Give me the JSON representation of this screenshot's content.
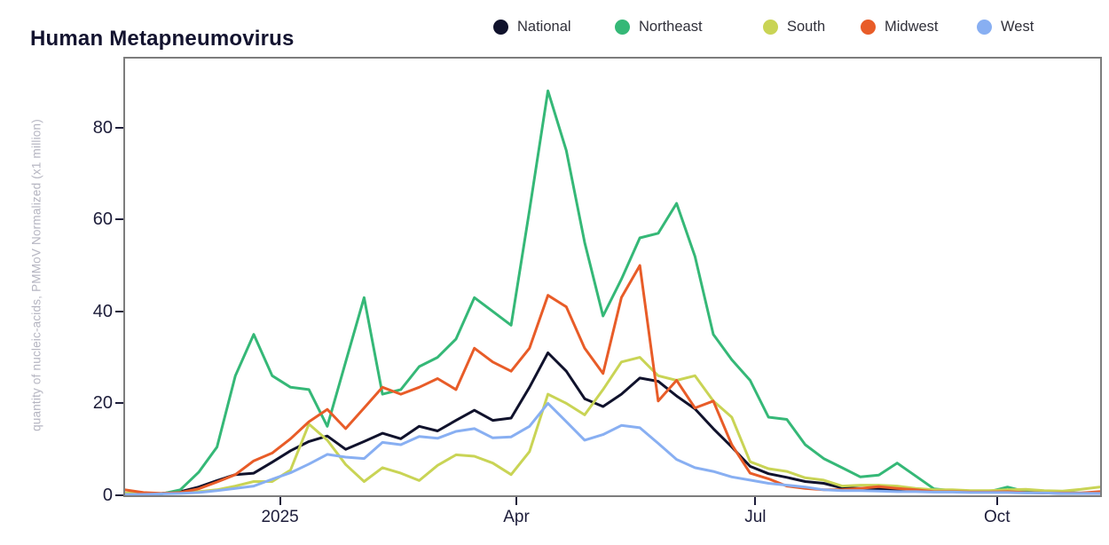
{
  "page": {
    "title": "Human Metapneumovirus"
  },
  "colors": {
    "title": "#13132f",
    "tick_label": "#1d1d3a",
    "tick_mark": "#1d1d3a",
    "axis_border": "#7d7d7d",
    "y_axis_title": "#b5b5c1",
    "legend_text": "#30303a",
    "background": "#ffffff"
  },
  "y_axis": {
    "title": "quantity of nucleic-acids, PMMoV Normalized (x1 million)",
    "ticks": [
      0,
      20,
      40,
      60,
      80
    ]
  },
  "x_axis": {
    "ticks": [
      {
        "label": "2025",
        "date": "2025-01-01"
      },
      {
        "label": "Apr",
        "date": "2025-04-01"
      },
      {
        "label": "Jul",
        "date": "2025-07-01"
      },
      {
        "label": "Oct",
        "date": "2025-10-01"
      }
    ]
  },
  "chart_data": {
    "type": "line",
    "title": "Human Metapneumovirus",
    "xlabel": "",
    "ylabel": "quantity of nucleic-acids, PMMoV Normalized (x1 million)",
    "ylim": [
      0,
      95
    ],
    "grid": false,
    "legend_position": "top",
    "x": [
      "2024-11-03",
      "2024-11-10",
      "2024-11-17",
      "2024-11-24",
      "2024-12-01",
      "2024-12-08",
      "2024-12-15",
      "2024-12-22",
      "2024-12-29",
      "2025-01-05",
      "2025-01-12",
      "2025-01-19",
      "2025-01-26",
      "2025-02-02",
      "2025-02-09",
      "2025-02-16",
      "2025-02-23",
      "2025-03-02",
      "2025-03-09",
      "2025-03-16",
      "2025-03-23",
      "2025-03-30",
      "2025-04-06",
      "2025-04-13",
      "2025-04-20",
      "2025-04-27",
      "2025-05-04",
      "2025-05-11",
      "2025-05-18",
      "2025-05-25",
      "2025-06-01",
      "2025-06-08",
      "2025-06-15",
      "2025-06-22",
      "2025-06-29",
      "2025-07-06",
      "2025-07-13",
      "2025-07-20",
      "2025-07-27",
      "2025-08-03",
      "2025-08-10",
      "2025-08-17",
      "2025-08-24",
      "2025-08-31",
      "2025-09-07",
      "2025-09-14",
      "2025-09-21",
      "2025-09-28",
      "2025-10-05",
      "2025-10-12",
      "2025-10-19",
      "2025-10-26",
      "2025-11-02",
      "2025-11-09",
      "2025-11-16"
    ],
    "series": [
      {
        "name": "National",
        "color": "#10122c",
        "values": [
          0.3,
          0.3,
          0.4,
          0.8,
          1.8,
          3.2,
          4.5,
          4.8,
          7.2,
          9.7,
          11.7,
          12.9,
          10.0,
          11.7,
          13.5,
          12.3,
          15.0,
          14.0,
          16.3,
          18.5,
          16.3,
          16.8,
          23.5,
          31.0,
          27.0,
          21.0,
          19.3,
          22.0,
          25.5,
          24.8,
          21.6,
          18.8,
          14.5,
          10.5,
          6.3,
          4.7,
          3.9,
          3.0,
          2.6,
          1.6,
          1.5,
          1.4,
          1.2,
          1.0,
          0.9,
          0.9,
          0.8,
          0.7,
          0.7,
          0.6,
          0.5,
          0.4,
          0.4,
          0.4,
          0.4
        ]
      },
      {
        "name": "Northeast",
        "color": "#35b877",
        "values": [
          0.1,
          0.1,
          0.3,
          1.2,
          5.0,
          10.5,
          26.0,
          35.0,
          26.0,
          23.5,
          23.0,
          15.0,
          29.0,
          43.0,
          22.0,
          23.0,
          28.0,
          30.0,
          34.0,
          43.0,
          40.0,
          37.0,
          62.0,
          88.0,
          75.0,
          55.0,
          39.0,
          47.0,
          56.0,
          57.0,
          63.5,
          52.0,
          35.0,
          29.5,
          25.0,
          17.0,
          16.5,
          11.0,
          8.0,
          6.0,
          4.0,
          4.4,
          7.0,
          4.2,
          1.4,
          1.0,
          0.9,
          0.8,
          1.8,
          0.8,
          0.7,
          0.6,
          0.5,
          0.6,
          0.5
        ]
      },
      {
        "name": "South",
        "color": "#c9d455",
        "values": [
          0.5,
          0.4,
          0.4,
          0.5,
          0.8,
          1.2,
          2.0,
          3.0,
          3.0,
          5.5,
          15.5,
          12.0,
          6.7,
          3.0,
          6.0,
          4.8,
          3.2,
          6.5,
          8.8,
          8.5,
          7.0,
          4.5,
          9.5,
          22.0,
          20.0,
          17.5,
          23.0,
          29.0,
          30.0,
          26.0,
          25.0,
          26.0,
          20.5,
          17.0,
          7.3,
          5.8,
          5.2,
          3.8,
          3.3,
          2.0,
          2.2,
          2.2,
          2.0,
          1.5,
          1.2,
          1.2,
          1.0,
          1.0,
          1.2,
          1.3,
          1.0,
          0.9,
          1.3,
          1.8,
          2.0
        ]
      },
      {
        "name": "Midwest",
        "color": "#e85c28",
        "values": [
          1.2,
          0.6,
          0.4,
          0.6,
          1.4,
          2.9,
          4.5,
          7.5,
          9.2,
          12.3,
          16.0,
          18.7,
          14.5,
          19.0,
          23.5,
          22.0,
          23.5,
          25.4,
          23.0,
          32.0,
          29.0,
          27.0,
          32.0,
          43.5,
          41.0,
          32.0,
          26.5,
          43.0,
          50.0,
          20.5,
          25.0,
          19.0,
          20.5,
          11.0,
          4.8,
          3.6,
          2.0,
          1.5,
          1.2,
          1.2,
          1.5,
          1.9,
          1.5,
          1.2,
          0.8,
          0.8,
          0.7,
          0.7,
          0.8,
          0.6,
          0.5,
          0.5,
          0.5,
          0.8,
          1.0
        ]
      },
      {
        "name": "West",
        "color": "#88aff2",
        "values": [
          0.2,
          0.2,
          0.3,
          0.4,
          0.6,
          1.0,
          1.5,
          2.0,
          3.5,
          4.9,
          6.8,
          8.9,
          8.3,
          8.0,
          11.5,
          11.0,
          12.8,
          12.4,
          13.9,
          14.5,
          12.5,
          12.7,
          15.0,
          20.0,
          16.0,
          12.0,
          13.2,
          15.2,
          14.7,
          11.3,
          7.8,
          6.0,
          5.2,
          4.0,
          3.3,
          2.6,
          2.2,
          1.8,
          1.2,
          1.0,
          1.0,
          0.9,
          0.8,
          0.8,
          0.7,
          0.7,
          0.6,
          0.6,
          0.6,
          0.5,
          0.5,
          0.4,
          0.4,
          0.4,
          0.4
        ]
      }
    ]
  }
}
